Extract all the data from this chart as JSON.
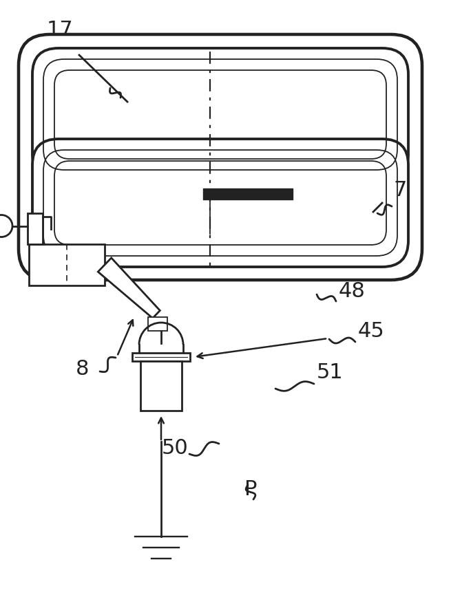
{
  "bg_color": "#ffffff",
  "lc": "#222222",
  "lw": 2.0,
  "lw_thin": 1.3,
  "lw_thick": 2.8,
  "fig_w": 6.55,
  "fig_h": 8.65,
  "dpi": 100
}
